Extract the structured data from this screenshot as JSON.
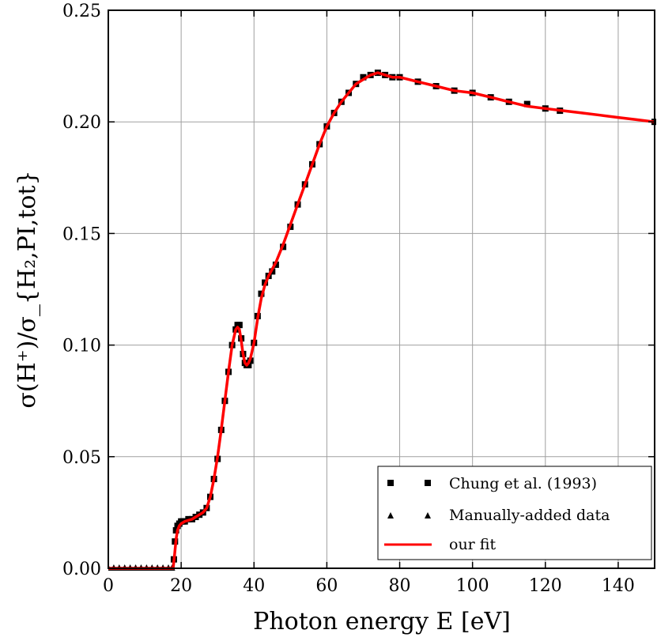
{
  "chart_data": {
    "type": "line",
    "xlabel": "Photon energy E [eV]",
    "ylabel": "σ(H⁺)/σ_{H₂,PI,tot}",
    "xlim": [
      0,
      150
    ],
    "ylim": [
      0,
      0.25
    ],
    "grid": true,
    "legend_position": "bottom-right",
    "x_ticks": [
      0,
      20,
      40,
      60,
      80,
      100,
      120,
      140
    ],
    "x_tick_labels": [
      "0",
      "20",
      "40",
      "60",
      "80",
      "100",
      "120",
      "140"
    ],
    "y_ticks": [
      0,
      0.05,
      0.1,
      0.15,
      0.2,
      0.25
    ],
    "y_tick_labels": [
      "0.00",
      "0.05",
      "0.10",
      "0.15",
      "0.20",
      "0.25"
    ],
    "series": [
      {
        "name": "Chung et al. (1993)",
        "kind": "scatter",
        "marker": "square",
        "color": "#000000",
        "x": [
          18,
          18.3,
          18.6,
          19,
          19.5,
          20,
          20.5,
          21,
          22,
          23,
          24,
          25,
          26,
          27,
          28,
          29,
          30,
          31,
          32,
          33,
          34,
          35,
          35.5,
          36,
          36.5,
          37,
          37.5,
          38,
          38.5,
          39,
          40,
          41,
          42,
          43,
          44,
          45,
          46,
          48,
          50,
          52,
          54,
          56,
          58,
          60,
          62,
          64,
          66,
          68,
          70,
          72,
          74,
          76,
          78,
          80,
          85,
          90,
          95,
          100,
          105,
          110,
          115,
          120,
          124,
          150
        ],
        "y": [
          0.004,
          0.012,
          0.017,
          0.019,
          0.02,
          0.021,
          0.021,
          0.021,
          0.022,
          0.022,
          0.023,
          0.024,
          0.025,
          0.027,
          0.032,
          0.04,
          0.049,
          0.062,
          0.075,
          0.088,
          0.1,
          0.107,
          0.109,
          0.109,
          0.103,
          0.096,
          0.092,
          0.091,
          0.091,
          0.093,
          0.101,
          0.113,
          0.123,
          0.128,
          0.131,
          0.133,
          0.136,
          0.144,
          0.153,
          0.163,
          0.172,
          0.181,
          0.19,
          0.198,
          0.204,
          0.209,
          0.213,
          0.217,
          0.22,
          0.221,
          0.222,
          0.221,
          0.22,
          0.22,
          0.218,
          0.216,
          0.214,
          0.213,
          0.211,
          0.209,
          0.208,
          0.206,
          0.205,
          0.2
        ]
      },
      {
        "name": "Manually-added data",
        "kind": "scatter",
        "marker": "triangle",
        "color": "#000000",
        "x": [
          0,
          1.5,
          3,
          4.5,
          6,
          7.5,
          9,
          10.5,
          12,
          13.5,
          15,
          16.5,
          17.5
        ],
        "y": [
          0,
          0,
          0,
          0,
          0,
          0,
          0,
          0,
          0,
          0,
          0,
          0,
          0
        ]
      },
      {
        "name": "our fit",
        "kind": "line",
        "color": "#ff0000",
        "x": [
          0,
          17.8,
          18.2,
          18.6,
          19,
          19.5,
          20,
          21,
          22,
          23,
          24,
          25,
          26,
          27,
          28,
          29,
          30,
          31,
          32,
          33,
          34,
          35,
          35.5,
          36,
          36.5,
          37,
          37.5,
          38,
          38.5,
          39,
          40,
          41,
          42,
          43,
          44,
          45,
          46,
          48,
          50,
          52,
          54,
          56,
          58,
          60,
          62,
          64,
          66,
          68,
          70,
          72,
          74,
          76,
          78,
          80,
          85,
          90,
          95,
          100,
          105,
          110,
          115,
          120,
          125,
          130,
          135,
          140,
          145,
          150
        ],
        "y": [
          0,
          0,
          0.006,
          0.013,
          0.017,
          0.019,
          0.02,
          0.021,
          0.0215,
          0.022,
          0.023,
          0.024,
          0.025,
          0.027,
          0.032,
          0.04,
          0.05,
          0.062,
          0.075,
          0.088,
          0.1,
          0.107,
          0.108,
          0.107,
          0.102,
          0.096,
          0.092,
          0.091,
          0.092,
          0.094,
          0.101,
          0.112,
          0.121,
          0.127,
          0.131,
          0.134,
          0.137,
          0.145,
          0.154,
          0.163,
          0.172,
          0.181,
          0.19,
          0.198,
          0.204,
          0.209,
          0.213,
          0.217,
          0.219,
          0.221,
          0.222,
          0.221,
          0.22,
          0.22,
          0.218,
          0.216,
          0.214,
          0.213,
          0.211,
          0.209,
          0.207,
          0.206,
          0.205,
          0.204,
          0.203,
          0.202,
          0.201,
          0.2
        ]
      }
    ],
    "legend": [
      {
        "label": "Chung et al. (1993)",
        "marker": "square"
      },
      {
        "label": "Manually-added data",
        "marker": "triangle"
      },
      {
        "label": "our fit",
        "marker": "line"
      }
    ]
  }
}
